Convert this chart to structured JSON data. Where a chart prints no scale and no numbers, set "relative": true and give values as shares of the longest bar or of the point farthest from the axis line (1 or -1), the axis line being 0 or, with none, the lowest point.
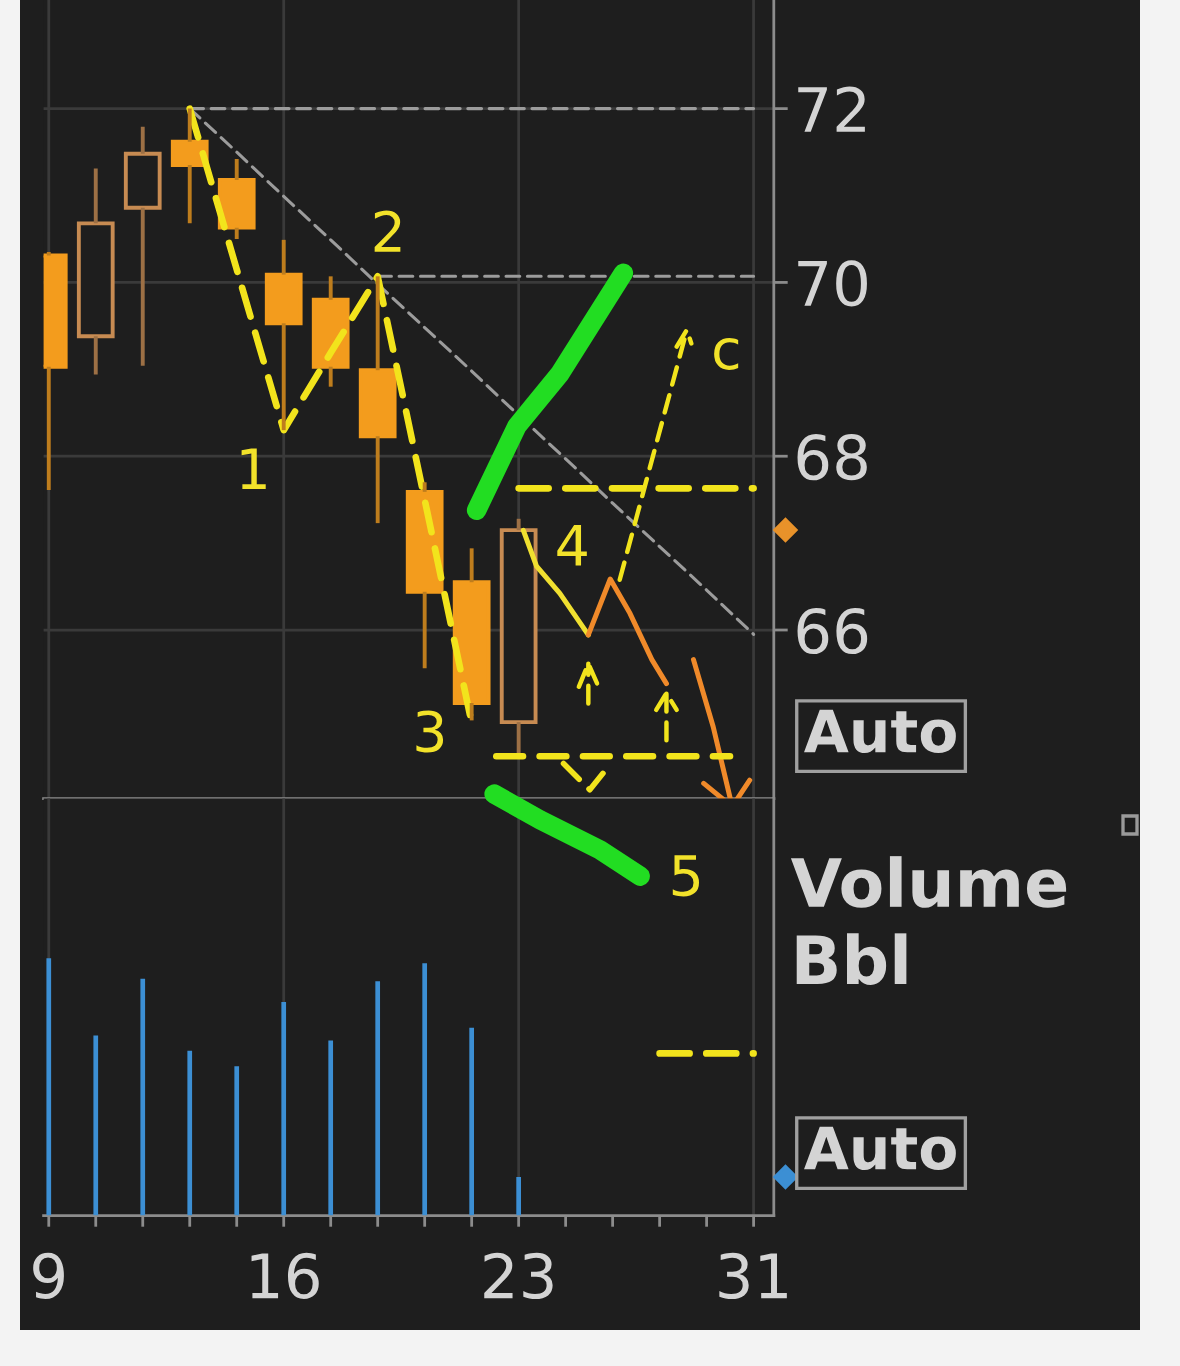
{
  "chart_data": [
    {
      "type": "candlestick",
      "categories": [
        "9",
        null,
        null,
        null,
        null,
        "16",
        null,
        null,
        null,
        null,
        "23",
        null,
        null,
        null,
        null,
        "31"
      ],
      "ohlc": [
        [
          70.31,
          70.35,
          67.61,
          69.03
        ],
        [
          69.38,
          71.31,
          68.94,
          70.68
        ],
        [
          70.86,
          71.79,
          69.04,
          71.48
        ],
        [
          71.62,
          72.0,
          70.68,
          71.35
        ],
        [
          71.18,
          71.42,
          70.5,
          70.63
        ],
        [
          70.09,
          70.49,
          68.3,
          69.53
        ],
        [
          69.8,
          70.07,
          68.8,
          69.03
        ],
        [
          68.99,
          70.07,
          67.23,
          68.23
        ],
        [
          67.59,
          67.7,
          65.56,
          66.44
        ],
        [
          66.55,
          66.94,
          64.96,
          65.16
        ],
        [
          64.94,
          67.28,
          64.54,
          67.15
        ],
        null,
        null,
        null,
        null,
        null
      ],
      "colors": [
        "#f39c1d",
        "#c78b52",
        "#c78b52",
        "#f39c1d",
        "#f39c1d",
        "#f39c1d",
        "#f39c1d",
        "#f39c1d",
        "#f39c1d",
        "#f39c1d",
        "#c78b52",
        null,
        null,
        null,
        null,
        null
      ],
      "series": [
        {
          "type": "line",
          "values": [
            null,
            null,
            null,
            72.0,
            71.5,
            70.99,
            70.49,
            69.98,
            69.48,
            68.98,
            68.47,
            67.97,
            67.46,
            66.96,
            66.46,
            65.95
          ],
          "color": "#9c9c9c",
          "line_style": "dashed"
        },
        {
          "type": "line",
          "values": [
            null,
            null,
            null,
            72.0,
            72.0,
            72.0,
            72.0,
            72.0,
            72.0,
            72.0,
            72.0,
            72.0,
            72.0,
            72.0,
            72.0,
            72.0
          ],
          "color": "#9c9c9c",
          "line_style": "dashed"
        },
        {
          "type": "line",
          "values": [
            null,
            null,
            null,
            null,
            null,
            null,
            null,
            70.07,
            70.07,
            70.07,
            70.07,
            70.07,
            70.07,
            70.07,
            70.07,
            70.07
          ],
          "color": "#9c9c9c",
          "line_style": "dashed"
        },
        {
          "type": "line",
          "values": [
            null,
            null,
            null,
            72.0,
            70.15,
            68.3,
            69.19,
            70.07,
            67.5,
            64.93,
            null,
            null,
            null,
            null,
            null,
            null
          ],
          "color": "#f2e41c",
          "line_style": "dashed"
        },
        {
          "type": "line",
          "values": [
            null,
            null,
            null,
            null,
            null,
            null,
            null,
            null,
            null,
            null,
            67.63,
            67.63,
            67.63,
            67.63,
            67.63,
            67.63
          ],
          "color": "#f2e41c",
          "line_style": "dashed"
        }
      ],
      "ylim": [
        64.06,
        73.25
      ],
      "yticks": [
        66,
        68,
        70,
        72
      ],
      "tick_labels": "y",
      "grid": true,
      "annotations": [
        "1",
        "2",
        "3",
        "4",
        "c",
        "Auto"
      ]
    },
    {
      "type": "bar",
      "relative": true,
      "ylabel": "Volume\nBbl",
      "categories": [
        "9",
        null,
        null,
        null,
        null,
        "16",
        null,
        null,
        null,
        null,
        "23",
        null,
        null,
        null,
        null,
        "31"
      ],
      "values": [
        1.0,
        0.7,
        0.92,
        0.64,
        0.58,
        0.83,
        0.68,
        0.91,
        0.98,
        0.73,
        0.15,
        null,
        null,
        null,
        null,
        null
      ],
      "color": "#3c8fd4",
      "series": [
        {
          "type": "line",
          "values": [
            null,
            null,
            null,
            null,
            null,
            null,
            null,
            null,
            null,
            null,
            null,
            null,
            null,
            0.63,
            0.63,
            0.63
          ],
          "color": "#f2e41c",
          "line_style": "dashed"
        }
      ],
      "tick_labels": "x",
      "grid": "x",
      "annotations": [
        "5",
        "Auto"
      ]
    }
  ]
}
